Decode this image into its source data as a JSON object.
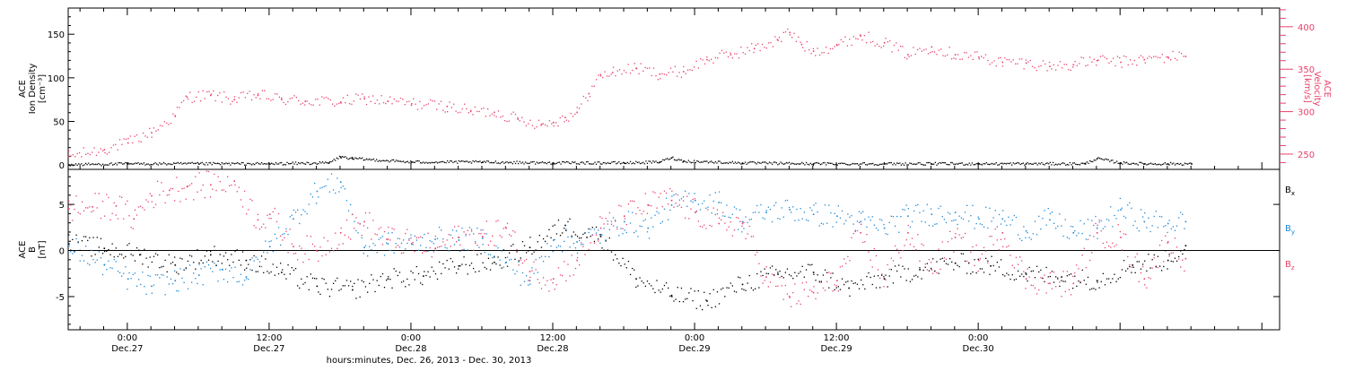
{
  "chart_data": [
    {
      "type": "scatter",
      "panel": "plasma",
      "ylabel_lines": [
        "ACE",
        "Ion Density",
        "[cm⁻³]"
      ],
      "ylabel2_lines": [
        "ACE",
        "Velocity",
        "[km/s]"
      ],
      "ylim": [
        -5,
        180
      ],
      "yticks": [
        0,
        50,
        100,
        150
      ],
      "ylim2": [
        232,
        422
      ],
      "yticks2": [
        250,
        300,
        350,
        400
      ],
      "xlim_hours": [
        -5,
        97.5
      ],
      "series": [
        {
          "axis": "left",
          "color": "#000000",
          "x": [
            -5,
            0,
            6,
            12,
            17,
            18,
            19,
            24,
            30,
            36,
            42,
            45,
            46,
            47,
            52,
            58,
            64,
            68,
            72,
            76,
            81,
            82,
            84,
            86,
            88,
            90
          ],
          "y": [
            1,
            2,
            2,
            2,
            3,
            10,
            8,
            4,
            4,
            3,
            3,
            4,
            9,
            5,
            3,
            2,
            2,
            2,
            2,
            2,
            2,
            8,
            3,
            2,
            2,
            2
          ]
        },
        {
          "axis": "right",
          "color": "#e8416b",
          "x": [
            -5,
            -2,
            0,
            2,
            4,
            5,
            7,
            9,
            11,
            13,
            15,
            18,
            20,
            22,
            24,
            27,
            29,
            31,
            33,
            35,
            36,
            37,
            38,
            39,
            40,
            41,
            43,
            45,
            47,
            49,
            51,
            53,
            55,
            56,
            57,
            58,
            60,
            62,
            64,
            66,
            68,
            70,
            72,
            74,
            76,
            78,
            80,
            82,
            84,
            86,
            88,
            89.5
          ],
          "y": [
            248,
            256,
            264,
            276,
            296,
            318,
            320,
            315,
            320,
            315,
            313,
            312,
            316,
            313,
            310,
            307,
            301,
            300,
            292,
            286,
            288,
            294,
            300,
            322,
            343,
            347,
            352,
            345,
            348,
            362,
            368,
            375,
            385,
            394,
            380,
            372,
            379,
            390,
            382,
            368,
            377,
            368,
            365,
            359,
            358,
            354,
            356,
            361,
            359,
            362,
            365,
            366
          ]
        }
      ]
    },
    {
      "type": "scatter",
      "panel": "magnetic field",
      "ylabel_lines": [
        "ACE",
        "B",
        "[nT]"
      ],
      "ylim": [
        -8.6,
        8.8
      ],
      "yticks": [
        -5,
        0,
        5
      ],
      "zero_line": true,
      "xlim_hours": [
        -5,
        97.5
      ],
      "series": [
        {
          "name": "B",
          "subscript": "x",
          "color": "#000000",
          "x": [
            -5,
            -2,
            1,
            4,
            7,
            10,
            13,
            16,
            19,
            22,
            25,
            28,
            31,
            34,
            37,
            40,
            43,
            46,
            49,
            52,
            55,
            58,
            61,
            64,
            67,
            70,
            73,
            76,
            79,
            82,
            85,
            88,
            89.5
          ],
          "y": [
            0.8,
            0.3,
            -0.4,
            -1.5,
            -0.4,
            -1.0,
            -2.3,
            -3.8,
            -4.2,
            -3.0,
            -2.7,
            -1.6,
            -1.2,
            0.4,
            2.8,
            1.6,
            -3.0,
            -4.8,
            -5.4,
            -3.6,
            -2.5,
            -2.3,
            -4.0,
            -3.0,
            -2.0,
            -1.3,
            -1.6,
            -2.5,
            -2.8,
            -3.2,
            -1.5,
            -1.0,
            0.6
          ]
        },
        {
          "name": "B",
          "subscript": "y",
          "color": "#1e88d6",
          "x": [
            -5,
            -2,
            0,
            2,
            4,
            6,
            8,
            10,
            12,
            14,
            16,
            18,
            20,
            22,
            24,
            26,
            28,
            30,
            32,
            34,
            36,
            38,
            40,
            42,
            44,
            46,
            48,
            50,
            52,
            54,
            56,
            58,
            60,
            62,
            64,
            66,
            68,
            70,
            72,
            74,
            76,
            78,
            80,
            82,
            84,
            86,
            88,
            89.5
          ],
          "y": [
            0.6,
            -1.5,
            -3.0,
            -3.8,
            -3.2,
            -2.6,
            -2.0,
            -2.8,
            0.5,
            3.5,
            6.5,
            7.5,
            0.4,
            0.8,
            0.8,
            1.3,
            1.2,
            1.4,
            -1.2,
            -3.2,
            1.2,
            1.0,
            1.8,
            3.2,
            2.5,
            5.0,
            5.5,
            5.3,
            3.2,
            4.2,
            4.5,
            4.0,
            3.8,
            3.2,
            2.5,
            3.8,
            4.0,
            4.2,
            3.5,
            3.5,
            2.2,
            3.4,
            2.0,
            2.5,
            4.5,
            3.2,
            3.0,
            3.2
          ]
        },
        {
          "name": "B",
          "subscript": "z",
          "color": "#e8416b",
          "x": [
            -5,
            -3,
            -1,
            0.5,
            2,
            3.5,
            5,
            7,
            9,
            11,
            12,
            14,
            16,
            18,
            20,
            22,
            24,
            26,
            28,
            30,
            32,
            34,
            36,
            38,
            40,
            42,
            44,
            46,
            48,
            50,
            52,
            54,
            56,
            58,
            60,
            62,
            64,
            66,
            68,
            70,
            72,
            74,
            76,
            78,
            80,
            82,
            84,
            86,
            88,
            89.5
          ],
          "y": [
            4.6,
            4.8,
            4.9,
            3.5,
            6.0,
            6.6,
            7.0,
            7.2,
            7.6,
            3.4,
            4.0,
            0.5,
            0.0,
            2.0,
            3.2,
            1.3,
            0.8,
            0.3,
            1.5,
            1.6,
            2.5,
            -2.2,
            -3.0,
            -1.0,
            2.5,
            3.8,
            5.0,
            5.5,
            4.2,
            3.0,
            3.0,
            -2.8,
            -5.0,
            -4.5,
            -3.2,
            2.0,
            -3.0,
            2.0,
            -2.0,
            1.5,
            -1.0,
            2.0,
            -3.0,
            -3.5,
            -3.5,
            2.0,
            1.5,
            -3.0,
            1.0,
            -0.8
          ]
        }
      ]
    }
  ],
  "x_axis": {
    "ticks": [
      {
        "hour": 0,
        "time": "0:00",
        "day": "Dec.27"
      },
      {
        "hour": 12,
        "time": "12:00",
        "day": "Dec.27"
      },
      {
        "hour": 24,
        "time": "0:00",
        "day": "Dec.28"
      },
      {
        "hour": 36,
        "time": "12:00",
        "day": "Dec.28"
      },
      {
        "hour": 48,
        "time": "0:00",
        "day": "Dec.29"
      },
      {
        "hour": 60,
        "time": "12:00",
        "day": "Dec.29"
      },
      {
        "hour": 72,
        "time": "0:00",
        "day": "Dec.30"
      }
    ],
    "label": "hours:minutes, Dec. 26, 2013 - Dec. 30, 2013"
  },
  "colors": {
    "black": "#000000",
    "pink": "#e8416b",
    "blue": "#1e88d6"
  }
}
